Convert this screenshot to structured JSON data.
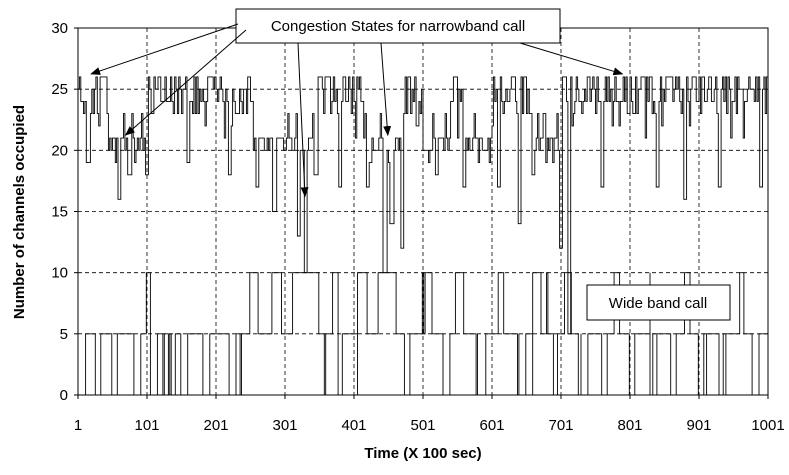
{
  "chart_data": {
    "type": "line",
    "title": "",
    "xlabel": "Time (X 100 sec)",
    "ylabel": "Number of channels occupied",
    "xlim": [
      1,
      1001
    ],
    "ylim": [
      0,
      30
    ],
    "x_ticks": [
      1,
      101,
      201,
      301,
      401,
      501,
      601,
      701,
      801,
      901,
      1001
    ],
    "y_ticks": [
      0,
      5,
      10,
      15,
      20,
      25,
      30
    ],
    "grid": "dashed",
    "colors": {
      "line": "#000000",
      "grid": "#000000",
      "background": "#ffffff"
    },
    "series": [
      {
        "role": "narrowband",
        "sample_step": 2,
        "x_start": 1,
        "levels": [
          21,
          24,
          26
        ],
        "dips": [
          {
            "x": 15,
            "level": 19
          },
          {
            "x": 60,
            "level": 16
          },
          {
            "x": 75,
            "level": 18
          },
          {
            "x": 100,
            "level": 18
          },
          {
            "x": 160,
            "level": 19
          },
          {
            "x": 220,
            "level": 18
          },
          {
            "x": 260,
            "level": 17
          },
          {
            "x": 285,
            "level": 15
          },
          {
            "x": 320,
            "level": 13
          },
          {
            "x": 330,
            "level": 10
          },
          {
            "x": 345,
            "level": 18
          },
          {
            "x": 380,
            "level": 17
          },
          {
            "x": 420,
            "level": 17
          },
          {
            "x": 445,
            "level": 10
          },
          {
            "x": 455,
            "level": 14
          },
          {
            "x": 470,
            "level": 12
          },
          {
            "x": 520,
            "level": 18
          },
          {
            "x": 560,
            "level": 17
          },
          {
            "x": 610,
            "level": 17
          },
          {
            "x": 640,
            "level": 14
          },
          {
            "x": 660,
            "level": 18
          },
          {
            "x": 700,
            "level": 12
          },
          {
            "x": 712,
            "level": 5
          },
          {
            "x": 760,
            "level": 17
          },
          {
            "x": 840,
            "level": 17
          },
          {
            "x": 880,
            "level": 16
          },
          {
            "x": 930,
            "level": 17
          },
          {
            "x": 990,
            "level": 17
          }
        ]
      },
      {
        "role": "wideband",
        "sample_step": 2,
        "x_start": 1,
        "levels": [
          0,
          5,
          10
        ],
        "runs": [
          [
            1,
            0
          ],
          [
            12,
            5
          ],
          [
            26,
            0
          ],
          [
            34,
            5
          ],
          [
            50,
            0
          ],
          [
            58,
            5
          ],
          [
            82,
            0
          ],
          [
            92,
            5
          ],
          [
            100,
            10
          ],
          [
            106,
            0
          ],
          [
            116,
            5
          ],
          [
            136,
            0
          ],
          [
            142,
            5
          ],
          [
            150,
            0
          ],
          [
            160,
            5
          ],
          [
            182,
            0
          ],
          [
            192,
            5
          ],
          [
            220,
            0
          ],
          [
            230,
            5
          ],
          [
            250,
            10
          ],
          [
            262,
            5
          ],
          [
            282,
            10
          ],
          [
            296,
            5
          ],
          [
            312,
            10
          ],
          [
            350,
            5
          ],
          [
            370,
            10
          ],
          [
            378,
            0
          ],
          [
            384,
            5
          ],
          [
            406,
            10
          ],
          [
            420,
            5
          ],
          [
            436,
            10
          ],
          [
            462,
            5
          ],
          [
            474,
            0
          ],
          [
            482,
            5
          ],
          [
            500,
            10
          ],
          [
            514,
            5
          ],
          [
            530,
            0
          ],
          [
            540,
            5
          ],
          [
            548,
            10
          ],
          [
            560,
            5
          ],
          [
            580,
            0
          ],
          [
            592,
            5
          ],
          [
            610,
            10
          ],
          [
            618,
            5
          ],
          [
            640,
            0
          ],
          [
            650,
            5
          ],
          [
            660,
            10
          ],
          [
            672,
            5
          ],
          [
            690,
            0
          ],
          [
            696,
            5
          ],
          [
            706,
            10
          ],
          [
            716,
            5
          ],
          [
            730,
            0
          ],
          [
            740,
            5
          ],
          [
            760,
            0
          ],
          [
            768,
            5
          ],
          [
            778,
            10
          ],
          [
            786,
            5
          ],
          [
            800,
            0
          ],
          [
            808,
            5
          ],
          [
            830,
            0
          ],
          [
            840,
            5
          ],
          [
            860,
            0
          ],
          [
            868,
            5
          ],
          [
            880,
            10
          ],
          [
            888,
            5
          ],
          [
            900,
            0
          ],
          [
            912,
            5
          ],
          [
            932,
            0
          ],
          [
            940,
            5
          ],
          [
            960,
            10
          ],
          [
            966,
            5
          ],
          [
            978,
            0
          ],
          [
            988,
            5
          ],
          [
            1001,
            5
          ]
        ]
      }
    ],
    "annotations": [
      {
        "text": "Congestion States for narrowband call",
        "arrows_to": [
          [
            20,
            26
          ],
          [
            70,
            21
          ],
          [
            330,
            16
          ],
          [
            450,
            21
          ],
          [
            790,
            26
          ]
        ]
      },
      {
        "text": "Wide band call"
      }
    ]
  }
}
